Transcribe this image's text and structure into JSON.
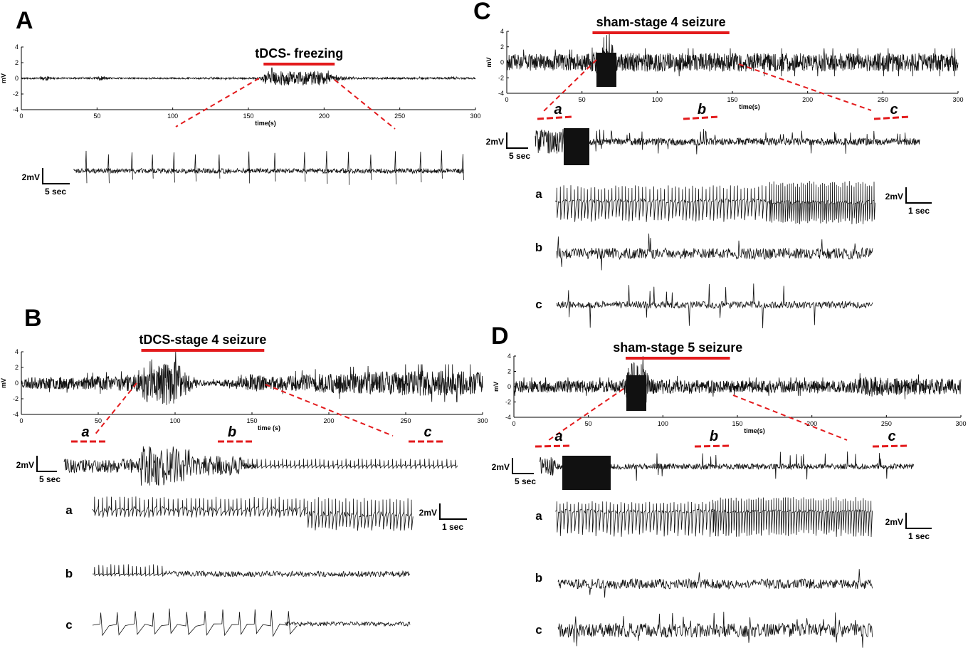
{
  "colors": {
    "trace": "#111111",
    "marker": "#e31a1c",
    "axis": "#000000"
  },
  "panels": [
    {
      "id": "A",
      "letter": "A",
      "event_label": "tDCS- freezing",
      "ylabel": "mV",
      "xlabel": "time(s)",
      "scale": {
        "v": "2mV",
        "t": "5 sec"
      },
      "segments": [],
      "seg_scale": null
    },
    {
      "id": "B",
      "letter": "B",
      "event_label": "tDCS-stage 4 seizure",
      "ylabel": "mV",
      "xlabel": "time (s)",
      "scale": {
        "v": "2mV",
        "t": "5 sec"
      },
      "segments": [
        "a",
        "b",
        "c"
      ],
      "seg_scale": {
        "v": "2mV",
        "t": "1 sec"
      }
    },
    {
      "id": "C",
      "letter": "C",
      "event_label": "sham-stage 4 seizure",
      "ylabel": "mV",
      "xlabel": "time(s)",
      "scale": {
        "v": "2mV",
        "t": "5 sec"
      },
      "segments": [
        "a",
        "b",
        "c"
      ],
      "seg_scale": {
        "v": "2mV",
        "t": "1 sec"
      }
    },
    {
      "id": "D",
      "letter": "D",
      "event_label": "sham-stage 5 seizure",
      "ylabel": "mV",
      "xlabel": "time(s)",
      "scale": {
        "v": "2mV",
        "t": "5 sec"
      },
      "segments": [
        "a",
        "b",
        "c"
      ],
      "seg_scale": {
        "v": "2mV",
        "t": "1 sec"
      }
    }
  ],
  "chart_data": [
    {
      "type": "line",
      "panel": "A",
      "title": "tDCS- freezing",
      "xlabel": "time(s)",
      "ylabel": "mV",
      "xlim": [
        0,
        300
      ],
      "ylim": [
        -4,
        4
      ],
      "xticks": [
        "0",
        "50",
        "100",
        "150",
        "200",
        "250",
        "300"
      ],
      "yticks": [
        "4",
        "2",
        "0",
        "-2",
        "-4"
      ],
      "event_window_s": [
        160,
        207
      ],
      "envelope": {
        "x": [
          0,
          12,
          15,
          17,
          20,
          48,
          50,
          52,
          60,
          150,
          158,
          162,
          175,
          200,
          207,
          220,
          300
        ],
        "y": [
          0.1,
          0.1,
          0.4,
          0.3,
          0.1,
          0.1,
          0.35,
          0.3,
          0.1,
          0.1,
          0.15,
          0.9,
          0.9,
          0.9,
          0.3,
          0.12,
          0.12
        ]
      }
    },
    {
      "type": "line",
      "panel": "B",
      "title": "tDCS-stage 4 seizure",
      "xlabel": "time (s)",
      "ylabel": "mV",
      "xlim": [
        0,
        300
      ],
      "ylim": [
        -4,
        4
      ],
      "xticks": [
        "0",
        "50",
        "100",
        "150",
        "200",
        "250",
        "300"
      ],
      "yticks": [
        "4",
        "2",
        "0",
        "-2",
        "-4"
      ],
      "event_window_s": [
        78,
        158
      ],
      "envelope": {
        "x": [
          0,
          50,
          78,
          82,
          90,
          100,
          110,
          120,
          140,
          150,
          160,
          200,
          250,
          300
        ],
        "y": [
          0.7,
          0.9,
          1.1,
          1.6,
          2.8,
          2.8,
          1.2,
          0.3,
          0.5,
          1.2,
          0.8,
          1.3,
          1.6,
          1.6
        ]
      }
    },
    {
      "type": "line",
      "panel": "C",
      "title": "sham-stage 4 seizure",
      "xlabel": "time(s)",
      "ylabel": "mV",
      "xlim": [
        0,
        300
      ],
      "ylim": [
        -4,
        4
      ],
      "xticks": [
        "0",
        "50",
        "100",
        "150",
        "200",
        "250",
        "300"
      ],
      "yticks": [
        "4",
        "2",
        "0",
        "-2",
        "-4"
      ],
      "event_window_s": [
        57,
        148
      ],
      "envelope": {
        "x": [
          0,
          55,
          58,
          62,
          70,
          72,
          80,
          150,
          300
        ],
        "y": [
          1.1,
          1.1,
          1.4,
          1.9,
          2.7,
          1.3,
          1.2,
          1.2,
          1.2
        ]
      }
    },
    {
      "type": "line",
      "panel": "D",
      "title": "sham-stage 5 seizure",
      "xlabel": "time(s)",
      "ylabel": "mV",
      "xlim": [
        0,
        300
      ],
      "ylim": [
        -4,
        4
      ],
      "xticks": [
        "0",
        "50",
        "100",
        "150",
        "200",
        "250",
        "300"
      ],
      "yticks": [
        "4",
        "2",
        "0",
        "-2",
        "-4"
      ],
      "event_window_s": [
        75,
        145
      ],
      "envelope": {
        "x": [
          0,
          70,
          75,
          78,
          88,
          92,
          150,
          220,
          240,
          260,
          300
        ],
        "y": [
          0.8,
          0.8,
          1.3,
          3.2,
          3.2,
          1.0,
          0.8,
          0.8,
          1.4,
          1.1,
          1.0
        ]
      }
    }
  ]
}
